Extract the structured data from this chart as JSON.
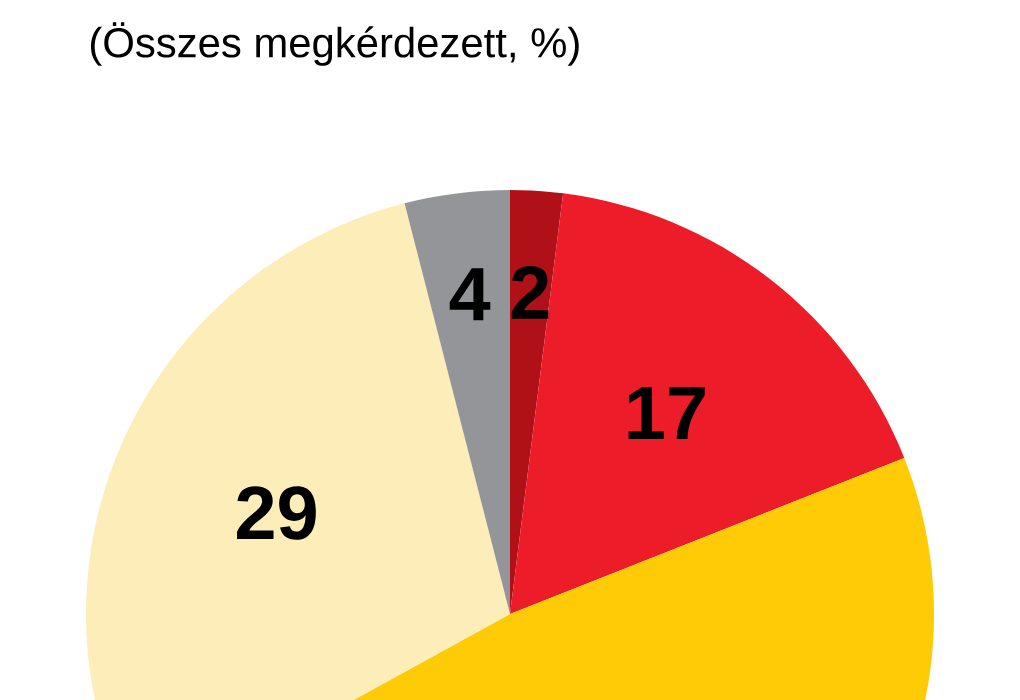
{
  "chart_data": {
    "type": "pie",
    "subtitle": "(Összes megkérdezett, %)",
    "categories": [
      null,
      null,
      null,
      null,
      null
    ],
    "values": [
      2,
      17,
      48,
      29,
      4
    ],
    "colors": [
      "#b01018",
      "#ec1c28",
      "#fecb06",
      "#fdedb8",
      "#939598"
    ],
    "value_labels": [
      "2",
      "17",
      null,
      "29",
      "4"
    ]
  }
}
